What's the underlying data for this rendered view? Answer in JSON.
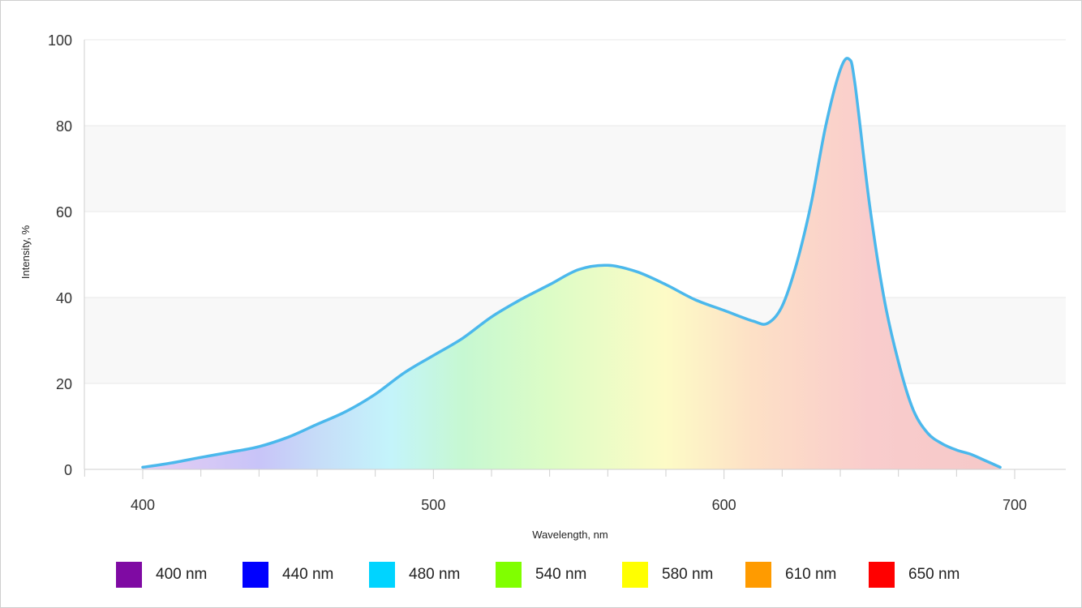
{
  "chart_data": {
    "type": "area",
    "title": "",
    "xlabel": "Wavelength, nm",
    "ylabel": "Intensity, %",
    "xlim": [
      380,
      720
    ],
    "ylim": [
      0,
      100
    ],
    "x_ticks": [
      400,
      500,
      600,
      700
    ],
    "y_ticks": [
      0,
      20,
      40,
      60,
      80,
      100
    ],
    "grid": true,
    "line_color": "#4bb8ec",
    "x": [
      400,
      410,
      420,
      430,
      440,
      450,
      460,
      470,
      480,
      490,
      500,
      510,
      520,
      530,
      540,
      550,
      560,
      570,
      580,
      590,
      600,
      610,
      615,
      620,
      625,
      630,
      635,
      640,
      643,
      645,
      650,
      655,
      660,
      665,
      670,
      675,
      680,
      685,
      690,
      695
    ],
    "y": [
      0.5,
      1.5,
      2.8,
      4.0,
      5.3,
      7.5,
      10.5,
      13.5,
      17.5,
      22.5,
      26.5,
      30.5,
      35.5,
      39.5,
      43.0,
      46.5,
      47.5,
      46.0,
      43.0,
      39.5,
      37.0,
      34.5,
      34.0,
      38.0,
      48.0,
      62.0,
      80.0,
      93.0,
      95.5,
      90.0,
      62.0,
      40.0,
      25.0,
      14.0,
      8.5,
      6.0,
      4.5,
      3.5,
      2.0,
      0.5
    ],
    "legend_position": "bottom",
    "legend": [
      {
        "label": "400 nm",
        "color": "#7f0aa3"
      },
      {
        "label": "440 nm",
        "color": "#0000ff"
      },
      {
        "label": "480 nm",
        "color": "#00d4ff"
      },
      {
        "label": "540 nm",
        "color": "#80ff00"
      },
      {
        "label": "580 nm",
        "color": "#ffff00"
      },
      {
        "label": "610 nm",
        "color": "#ff9b00"
      },
      {
        "label": "650 nm",
        "color": "#ff0000"
      }
    ],
    "fill_gradient": [
      {
        "nm": 400,
        "color": "#e6cdf2"
      },
      {
        "nm": 440,
        "color": "#c8c4f8"
      },
      {
        "nm": 460,
        "color": "#c6dcf8"
      },
      {
        "nm": 485,
        "color": "#c4f4fb"
      },
      {
        "nm": 510,
        "color": "#c6f8d2"
      },
      {
        "nm": 540,
        "color": "#dcfcc6"
      },
      {
        "nm": 580,
        "color": "#fdfbc6"
      },
      {
        "nm": 610,
        "color": "#fde0c6"
      },
      {
        "nm": 650,
        "color": "#f9cccc"
      },
      {
        "nm": 700,
        "color": "#f5c8c8"
      }
    ]
  }
}
